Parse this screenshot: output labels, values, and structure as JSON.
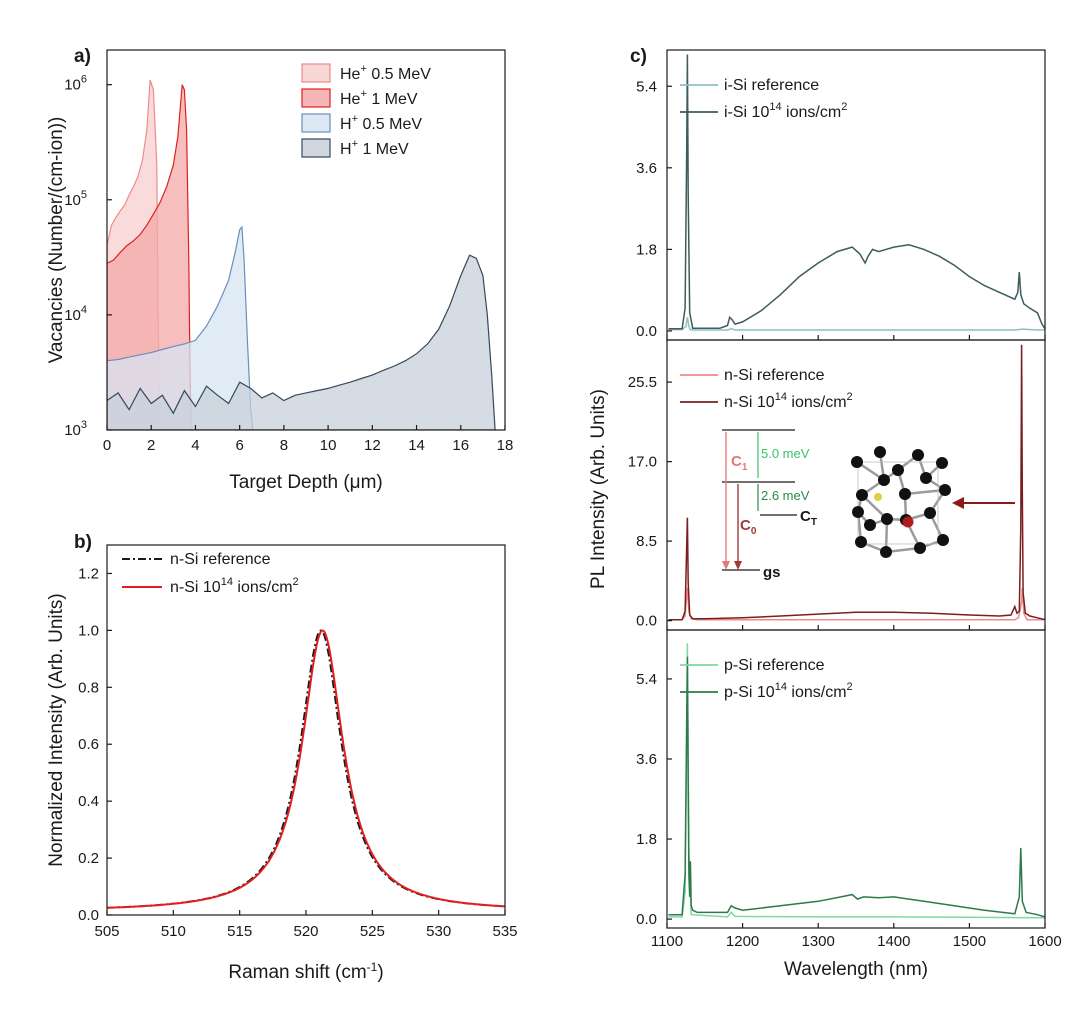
{
  "chart_data": [
    {
      "panel": "a)",
      "type": "area",
      "xlabel": "Target Depth (μm)",
      "ylabel": "Vacancies (Number/(cm-ion))",
      "xlim": [
        0,
        18
      ],
      "ylim": [
        1000,
        2000000
      ],
      "yscale": "log",
      "xticks": [
        0,
        2,
        4,
        6,
        8,
        10,
        12,
        14,
        16,
        18
      ],
      "yticks": [
        {
          "value": 1000,
          "base": "10",
          "exp": "3"
        },
        {
          "value": 10000,
          "base": "10",
          "exp": "4"
        },
        {
          "value": 100000,
          "base": "10",
          "exp": "5"
        },
        {
          "value": 1000000,
          "base": "10",
          "exp": "6"
        }
      ],
      "legend_position": "top-right",
      "series": [
        {
          "name": "He",
          "sup": "+",
          "suffix": " 0.5 MeV",
          "fill": "#f8cfcf",
          "stroke": "#f08a8a",
          "x": [
            0,
            0.2,
            0.4,
            0.6,
            0.8,
            1.0,
            1.2,
            1.4,
            1.6,
            1.8,
            1.95,
            2.1,
            2.25,
            2.3,
            2.35,
            2.4
          ],
          "y": [
            40000,
            60000,
            70000,
            80000,
            90000,
            110000,
            130000,
            160000,
            220000,
            400000,
            1100000,
            900000,
            200000,
            12000,
            3000,
            1000
          ]
        },
        {
          "name": "He",
          "sup": "+",
          "suffix": " 1 MeV",
          "fill": "#f4a8a8",
          "stroke": "#e02020",
          "x": [
            0,
            0.3,
            0.6,
            0.9,
            1.2,
            1.5,
            1.8,
            2.1,
            2.4,
            2.7,
            3.0,
            3.2,
            3.4,
            3.5,
            3.6,
            3.7,
            3.75,
            3.8
          ],
          "y": [
            28000,
            30000,
            35000,
            40000,
            44000,
            50000,
            60000,
            75000,
            95000,
            130000,
            200000,
            350000,
            1000000,
            900000,
            400000,
            30000,
            4000,
            1000
          ]
        },
        {
          "name": "H",
          "sup": "+",
          "suffix": " 0.5 MeV",
          "fill": "#d7e4f2",
          "stroke": "#6a8ebd",
          "x": [
            0,
            0.5,
            1.0,
            1.5,
            2.0,
            2.5,
            3.0,
            3.5,
            4.0,
            4.5,
            5.0,
            5.5,
            5.8,
            6.0,
            6.1,
            6.2,
            6.35,
            6.5,
            6.6
          ],
          "y": [
            4000,
            4100,
            4300,
            4500,
            4700,
            5000,
            5300,
            5600,
            6000,
            8000,
            12000,
            20000,
            35000,
            55000,
            58000,
            30000,
            6000,
            1500,
            1000
          ]
        },
        {
          "name": "H",
          "sup": "+",
          "suffix": " 1 MeV",
          "fill": "#c8d0da",
          "stroke": "#34495e",
          "x": [
            0,
            0.5,
            1.0,
            1.5,
            2.0,
            2.5,
            3.0,
            3.5,
            4.0,
            4.5,
            5.0,
            5.5,
            6.0,
            6.5,
            7.0,
            7.5,
            8.0,
            8.5,
            9.0,
            9.5,
            10.0,
            10.5,
            11.0,
            11.5,
            12.0,
            12.5,
            13.0,
            13.5,
            14.0,
            14.5,
            15.0,
            15.5,
            16.0,
            16.4,
            16.7,
            17.0,
            17.2,
            17.4,
            17.55
          ],
          "y": [
            1800,
            2100,
            1500,
            2300,
            1700,
            2000,
            1400,
            2200,
            1600,
            2400,
            2000,
            1700,
            2600,
            2300,
            1900,
            2100,
            1800,
            2000,
            2100,
            2200,
            2300,
            2450,
            2600,
            2800,
            3000,
            3300,
            3600,
            4000,
            4600,
            5600,
            7500,
            12000,
            22000,
            33000,
            31000,
            22000,
            10000,
            3000,
            1000
          ]
        }
      ]
    },
    {
      "panel": "b)",
      "type": "line",
      "xlabel": "Raman shift (cm",
      "xlabel_sup": "-1",
      "xlabel_end": ")",
      "ylabel": "Normalized Intensity (Arb. Units)",
      "xlim": [
        505,
        535
      ],
      "ylim": [
        0,
        1.3
      ],
      "xticks": [
        505,
        510,
        515,
        520,
        525,
        530,
        535
      ],
      "yticks": [
        0.0,
        0.2,
        0.4,
        0.6,
        0.8,
        1.0,
        1.2
      ],
      "ytick_labels": [
        "0.0",
        "0.2",
        "0.4",
        "0.6",
        "0.8",
        "1.0",
        "1.2"
      ],
      "legend_position": "top-left",
      "peak_center": 521.2,
      "peak_hwhm": 1.9,
      "baseline": 0.012,
      "series": [
        {
          "name": "n-Si reference",
          "color": "#1a1a1a",
          "dash": "8,3,2,3"
        },
        {
          "name": "n-Si 10",
          "sup": "14",
          "suffix": " ions/cm",
          "sup2": "2",
          "color": "#e02020",
          "dash": ""
        }
      ]
    },
    {
      "panel": "c)",
      "type": "line",
      "xlabel": "Wavelength (nm)",
      "ylabel": "PL Intensity (Arb. Units)",
      "xlim": [
        1100,
        1600
      ],
      "xticks": [
        1100,
        1200,
        1300,
        1400,
        1500,
        1600
      ],
      "legend_position": "top-left",
      "subplots": [
        {
          "ylim": [
            -0.2,
            6.2
          ],
          "yticks": [
            0.0,
            1.8,
            3.6,
            5.4
          ],
          "ytick_labels": [
            "0.0",
            "1.8",
            "3.6",
            "5.4"
          ],
          "series": [
            {
              "name": "i-Si reference",
              "color": "#8fbfc2",
              "x": [
                1102,
                1120,
                1125,
                1127,
                1129,
                1131,
                1135,
                1180,
                1185,
                1190,
                1250,
                1400,
                1560,
                1570,
                1590,
                1600
              ],
              "y": [
                0.03,
                0.03,
                0.1,
                0.3,
                0.1,
                0.03,
                0.02,
                0.02,
                0.05,
                0.02,
                0.02,
                0.02,
                0.02,
                0.04,
                0.02,
                0.02
              ]
            },
            {
              "name": "i-Si 10",
              "sup": "14",
              "suffix": " ions/cm",
              "sup2": "2",
              "color": "#3d5c5c",
              "x": [
                1102,
                1120,
                1124,
                1126,
                1127,
                1128,
                1130,
                1134,
                1170,
                1180,
                1183,
                1186,
                1190,
                1200,
                1225,
                1250,
                1275,
                1300,
                1325,
                1345,
                1355,
                1362,
                1366,
                1372,
                1380,
                1400,
                1420,
                1440,
                1460,
                1480,
                1500,
                1520,
                1540,
                1560,
                1564,
                1566,
                1568,
                1572,
                1580,
                1590,
                1596,
                1600
              ],
              "y": [
                0.05,
                0.05,
                0.5,
                4.0,
                6.1,
                3.0,
                0.4,
                0.06,
                0.06,
                0.12,
                0.3,
                0.25,
                0.15,
                0.2,
                0.45,
                0.8,
                1.2,
                1.5,
                1.75,
                1.85,
                1.7,
                1.5,
                1.65,
                1.8,
                1.75,
                1.85,
                1.9,
                1.8,
                1.65,
                1.45,
                1.2,
                1.0,
                0.85,
                0.7,
                0.85,
                1.3,
                0.8,
                0.6,
                0.5,
                0.4,
                0.15,
                0.05
              ]
            }
          ]
        },
        {
          "ylim": [
            -1,
            30
          ],
          "yticks": [
            0.0,
            8.5,
            17.0,
            25.5
          ],
          "ytick_labels": [
            "0.0",
            "8.5",
            "17.0",
            "25.5"
          ],
          "series": [
            {
              "name": "n-Si reference",
              "color": "#f08a8a",
              "x": [
                1102,
                1120,
                1124,
                1126,
                1127,
                1129,
                1132,
                1140,
                1200,
                1300,
                1400,
                1500,
                1560,
                1565,
                1569,
                1570,
                1572,
                1576,
                1590,
                1600
              ],
              "y": [
                0.1,
                0.1,
                0.5,
                2.5,
                3.5,
                1.0,
                0.2,
                0.1,
                0.1,
                0.1,
                0.1,
                0.1,
                0.1,
                0.3,
                2.0,
                3.5,
                0.8,
                0.1,
                0.1,
                0.1
              ]
            },
            {
              "name": "n-Si 10",
              "sup": "14",
              "suffix": " ions/cm",
              "sup2": "2",
              "color": "#7a1f1f",
              "x": [
                1102,
                1120,
                1124,
                1126,
                1127,
                1128,
                1130,
                1134,
                1150,
                1200,
                1250,
                1300,
                1350,
                1400,
                1450,
                1500,
                1540,
                1555,
                1560,
                1563,
                1566,
                1568,
                1569,
                1570,
                1571,
                1574,
                1580,
                1590,
                1600
              ],
              "y": [
                0.1,
                0.1,
                1.0,
                8.0,
                11.0,
                4.0,
                0.6,
                0.2,
                0.2,
                0.3,
                0.5,
                0.7,
                0.9,
                0.9,
                0.8,
                0.6,
                0.5,
                0.6,
                1.5,
                0.8,
                1.0,
                10.0,
                29.5,
                14.0,
                3.0,
                0.8,
                0.5,
                0.3,
                0.1
              ]
            }
          ],
          "inset": {
            "levels": [
              "C",
              "C",
              "gs"
            ],
            "level_subs": [
              "1",
              "0",
              ""
            ],
            "ct_label": "C",
            "ct_sub": "T",
            "energies": [
              "5.0 meV",
              "2.6 meV"
            ],
            "c1_color": "#e07a7a",
            "c0_color": "#a33a3a",
            "energy_top_color": "#3cc06a",
            "energy_bottom_color": "#2a8a4a"
          }
        },
        {
          "ylim": [
            -0.2,
            6.5
          ],
          "yticks": [
            0.0,
            1.8,
            3.6,
            5.4
          ],
          "ytick_labels": [
            "0.0",
            "1.8",
            "3.6",
            "5.4"
          ],
          "series": [
            {
              "name": "p-Si reference",
              "color": "#7fd8a0",
              "x": [
                1102,
                1120,
                1124,
                1126,
                1127,
                1129,
                1132,
                1180,
                1185,
                1190,
                1300,
                1400,
                1500,
                1600
              ],
              "y": [
                0.05,
                0.05,
                0.6,
                4.0,
                6.2,
                1.5,
                0.1,
                0.05,
                0.15,
                0.06,
                0.05,
                0.05,
                0.04,
                0.03
              ]
            },
            {
              "name": "p-Si 10",
              "sup": "14",
              "suffix": " ions/cm",
              "sup2": "2",
              "color": "#2f7a4a",
              "x": [
                1102,
                1120,
                1124,
                1126,
                1127,
                1128,
                1129,
                1130,
                1131,
                1132,
                1134,
                1140,
                1180,
                1185,
                1190,
                1200,
                1250,
                1300,
                1330,
                1345,
                1352,
                1360,
                1380,
                1400,
                1420,
                1440,
                1480,
                1520,
                1560,
                1566,
                1568,
                1570,
                1575,
                1590,
                1600
              ],
              "y": [
                0.1,
                0.1,
                1.0,
                4.5,
                5.9,
                3.0,
                1.0,
                0.5,
                1.3,
                0.3,
                0.2,
                0.15,
                0.15,
                0.3,
                0.25,
                0.2,
                0.3,
                0.4,
                0.5,
                0.55,
                0.45,
                0.5,
                0.48,
                0.5,
                0.45,
                0.4,
                0.3,
                0.2,
                0.12,
                0.5,
                1.6,
                0.4,
                0.15,
                0.1,
                0.05
              ]
            }
          ]
        }
      ]
    }
  ]
}
